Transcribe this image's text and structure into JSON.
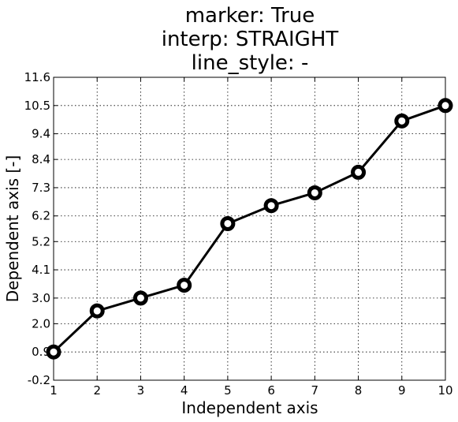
{
  "chart_data": {
    "type": "line",
    "title_lines": [
      "marker: True",
      "interp: STRAIGHT",
      "line_style: -"
    ],
    "xlabel": "Independent axis",
    "ylabel": "Dependent axis [-]",
    "xlim": [
      1,
      10
    ],
    "ylim": [
      -0.2,
      11.6
    ],
    "x_ticks": [
      "1",
      "2",
      "3",
      "4",
      "5",
      "6",
      "7",
      "8",
      "9",
      "10"
    ],
    "y_ticks": [
      "-0.2",
      "0.9",
      "2.0",
      "3.0",
      "4.1",
      "5.2",
      "6.2",
      "7.3",
      "8.4",
      "9.4",
      "10.5",
      "11.6"
    ],
    "grid": true,
    "line_color": "#000000",
    "marker_fill": "#ffffff",
    "series": [
      {
        "x": [
          1,
          2,
          3,
          4,
          5,
          6,
          7,
          8,
          9,
          10
        ],
        "y": [
          0.9,
          2.5,
          3.0,
          3.5,
          5.9,
          6.6,
          7.1,
          7.9,
          9.9,
          10.5
        ]
      }
    ]
  }
}
